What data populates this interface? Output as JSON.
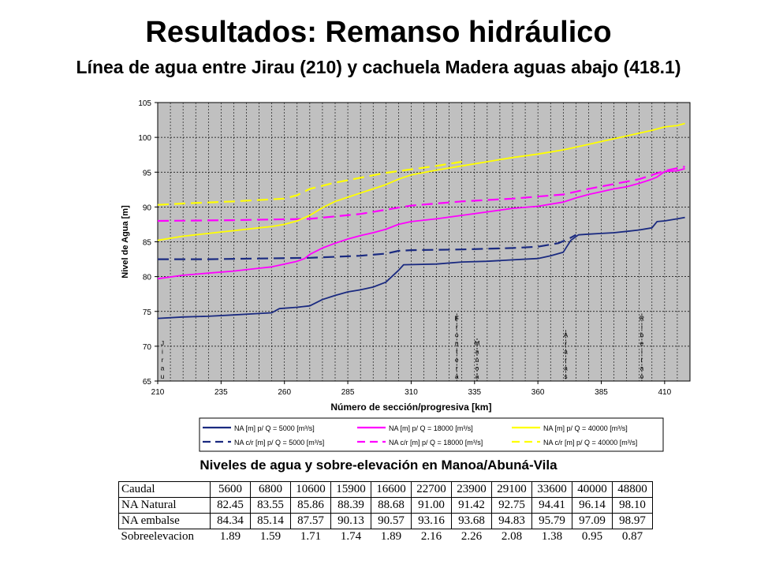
{
  "title": "Resultados: Remanso hidráulico",
  "subtitle": "Línea de agua entre Jirau (210) y cachuela Madera aguas abajo (418.1)",
  "table_title": "Niveles de agua y sobre-elevación en Manoa/Abuná-Vila",
  "table": {
    "header_label": "Caudal",
    "caudal": [
      "5600",
      "6800",
      "10600",
      "15900",
      "16600",
      "22700",
      "23900",
      "29100",
      "33600",
      "40000",
      "48800"
    ],
    "rows": [
      {
        "label": "NA Natural",
        "values": [
          "82.45",
          "83.55",
          "85.86",
          "88.39",
          "88.68",
          "91.00",
          "91.42",
          "92.75",
          "94.41",
          "96.14",
          "98.10"
        ]
      },
      {
        "label": "NA embalse",
        "values": [
          "84.34",
          "85.14",
          "87.57",
          "90.13",
          "90.57",
          "93.16",
          "93.68",
          "94.83",
          "95.79",
          "97.09",
          "98.97"
        ]
      },
      {
        "label": "Sobreelevacion",
        "values": [
          "1.89",
          "1.59",
          "1.71",
          "1.74",
          "1.89",
          "2.16",
          "2.26",
          "2.08",
          "1.38",
          "0.95",
          "0.87"
        ]
      }
    ]
  },
  "chart_data": {
    "type": "line",
    "title": "",
    "xlabel": "Número de sección/progresiva [km]",
    "ylabel": "Nivel de Agua [m]",
    "xlim": [
      210,
      420
    ],
    "ylim": [
      65,
      105
    ],
    "x_ticks": [
      210,
      235,
      260,
      285,
      310,
      335,
      360,
      385,
      410
    ],
    "y_ticks": [
      65,
      70,
      75,
      80,
      85,
      90,
      95,
      100,
      105
    ],
    "grid": true,
    "legend_position": "bottom",
    "background": "#c0c0c0",
    "locations": [
      {
        "label": "Jirau",
        "x": 210
      },
      {
        "label": "Frontera",
        "x": 328
      },
      {
        "label": "Manoa",
        "x": 336
      },
      {
        "label": "Araras",
        "x": 371
      },
      {
        "label": "Ribeirao",
        "x": 401
      }
    ],
    "series": [
      {
        "name": "NA [m] p/ Q = 5000 [m³/s]",
        "color": "#1a2a80",
        "dash": "solid",
        "x": [
          210,
          220,
          230,
          240,
          250,
          255,
          258,
          265,
          270,
          275,
          280,
          285,
          290,
          295,
          300,
          305,
          307,
          320,
          330,
          340,
          350,
          360,
          365,
          370,
          373,
          376,
          380,
          385,
          390,
          395,
          400,
          405,
          407,
          410,
          415,
          418
        ],
        "y": [
          74.0,
          74.2,
          74.3,
          74.5,
          74.7,
          74.8,
          75.4,
          75.6,
          75.8,
          76.7,
          77.3,
          77.8,
          78.1,
          78.5,
          79.2,
          80.9,
          81.7,
          81.8,
          82.1,
          82.2,
          82.4,
          82.6,
          83.0,
          83.5,
          85.2,
          86.0,
          86.1,
          86.2,
          86.3,
          86.5,
          86.7,
          87.0,
          87.9,
          88.0,
          88.3,
          88.5
        ]
      },
      {
        "name": "NA c/r [m] p/ Q = 5000 [m³/s]",
        "color": "#1a2a80",
        "dash": "dashed",
        "x": [
          210,
          230,
          250,
          270,
          290,
          300,
          305,
          310,
          330,
          350,
          360,
          368,
          372,
          375
        ],
        "y": [
          82.5,
          82.5,
          82.6,
          82.7,
          83.0,
          83.3,
          83.7,
          83.8,
          83.9,
          84.1,
          84.3,
          84.8,
          85.4,
          86.0
        ]
      },
      {
        "name": "NA [m] p/ Q = 18000 [m³/s]",
        "color": "#ff00ff",
        "dash": "solid",
        "x": [
          210,
          220,
          230,
          240,
          250,
          255,
          260,
          265,
          268,
          270,
          275,
          280,
          285,
          290,
          295,
          300,
          305,
          310,
          320,
          330,
          340,
          350,
          360,
          365,
          370,
          375,
          380,
          385,
          390,
          395,
          400,
          405,
          407,
          410,
          415,
          418
        ],
        "y": [
          79.7,
          80.2,
          80.5,
          80.8,
          81.2,
          81.4,
          81.8,
          82.2,
          82.6,
          83.2,
          84.1,
          84.8,
          85.4,
          85.9,
          86.3,
          86.8,
          87.5,
          87.9,
          88.3,
          88.8,
          89.3,
          89.8,
          90.1,
          90.4,
          90.7,
          91.3,
          91.8,
          92.2,
          92.6,
          92.9,
          93.4,
          94.0,
          94.3,
          95.1,
          95.2,
          95.5
        ]
      },
      {
        "name": "NA c/r [m] p/ Q = 18000 [m³/s]",
        "color": "#ff00ff",
        "dash": "dashed",
        "x": [
          210,
          240,
          270,
          290,
          310,
          330,
          350,
          370,
          380,
          390,
          400,
          405,
          410,
          418
        ],
        "y": [
          88.0,
          88.1,
          88.3,
          89.0,
          90.2,
          90.8,
          91.2,
          91.8,
          92.6,
          93.3,
          94.0,
          94.6,
          95.2,
          95.8
        ]
      },
      {
        "name": "NA [m] p/ Q = 40000 [m³/s]",
        "color": "#ffff00",
        "dash": "solid",
        "x": [
          210,
          220,
          230,
          240,
          250,
          255,
          260,
          265,
          270,
          275,
          280,
          285,
          290,
          295,
          300,
          305,
          310,
          320,
          330,
          340,
          350,
          360,
          365,
          370,
          375,
          380,
          385,
          390,
          395,
          400,
          405,
          410,
          415,
          418
        ],
        "y": [
          85.2,
          85.8,
          86.2,
          86.6,
          87.0,
          87.2,
          87.5,
          88.0,
          88.8,
          89.9,
          90.8,
          91.4,
          92.0,
          92.6,
          93.2,
          94.0,
          94.6,
          95.3,
          95.9,
          96.5,
          97.1,
          97.6,
          97.9,
          98.2,
          98.6,
          99.0,
          99.4,
          99.8,
          100.2,
          100.6,
          101.0,
          101.5,
          101.7,
          102.0
        ]
      },
      {
        "name": "NA c/r [m] p/ Q = 40000 [m³/s]",
        "color": "#ffff00",
        "dash": "dashed",
        "x": [
          210,
          220,
          240,
          260,
          265,
          270,
          280,
          290,
          300,
          310,
          320,
          330
        ],
        "y": [
          90.3,
          90.5,
          90.8,
          91.2,
          91.7,
          92.6,
          93.5,
          94.2,
          94.9,
          95.4,
          95.9,
          96.5
        ]
      }
    ]
  }
}
